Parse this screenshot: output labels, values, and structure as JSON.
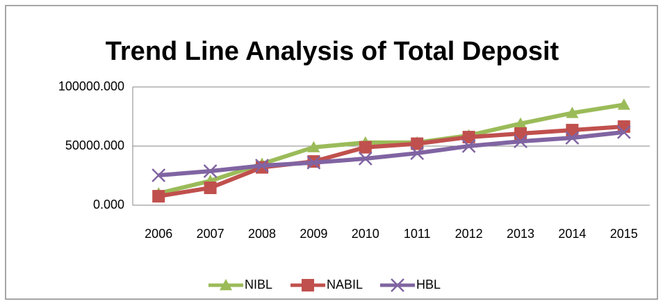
{
  "chart_data": {
    "type": "line",
    "title": "Trend Line Analysis of Total Deposit",
    "categories": [
      "2006",
      "2007",
      "2008",
      "2009",
      "2010",
      "1011",
      "2012",
      "2013",
      "2014",
      "2015"
    ],
    "series": [
      {
        "name": "NIBL",
        "color": "#9bbb59",
        "marker": "triangle",
        "values": [
          10000,
          20600,
          35000,
          49000,
          53000,
          53000,
          59000,
          69000,
          78000,
          85000
        ]
      },
      {
        "name": "NABIL",
        "color": "#c0504d",
        "marker": "square",
        "values": [
          7600,
          14700,
          32000,
          37000,
          49000,
          52000,
          57600,
          60600,
          63500,
          66500
        ]
      },
      {
        "name": "HBL",
        "color": "#8064a2",
        "marker": "x",
        "values": [
          25300,
          28800,
          33500,
          36000,
          39400,
          44000,
          50000,
          54000,
          57000,
          61800
        ]
      }
    ],
    "ylim": [
      0,
      100000
    ],
    "yticks": [
      {
        "value": 0,
        "label": "0.000"
      },
      {
        "value": 50000,
        "label": "50000.000"
      },
      {
        "value": 100000,
        "label": "100000.000"
      }
    ],
    "grid": true,
    "legend": "bottom"
  }
}
